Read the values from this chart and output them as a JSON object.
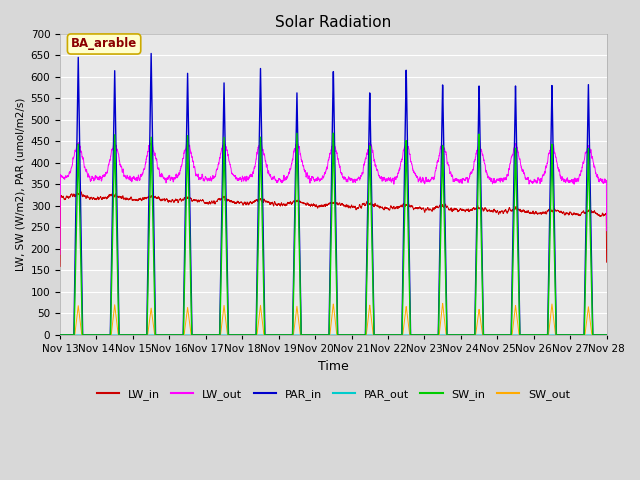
{
  "title": "Solar Radiation",
  "ylabel": "LW, SW (W/m2), PAR (umol/m2/s)",
  "xlabel": "Time",
  "annotation": "BA_arable",
  "ylim": [
    0,
    700
  ],
  "yticks": [
    0,
    50,
    100,
    150,
    200,
    250,
    300,
    350,
    400,
    450,
    500,
    550,
    600,
    650,
    700
  ],
  "xtick_labels": [
    "Nov 13",
    "Nov 14",
    "Nov 15",
    "Nov 16",
    "Nov 17",
    "Nov 18",
    "Nov 19",
    "Nov 20",
    "Nov 21",
    "Nov 22",
    "Nov 23",
    "Nov 24",
    "Nov 25",
    "Nov 26",
    "Nov 27",
    "Nov 28"
  ],
  "legend_entries": [
    "LW_in",
    "LW_out",
    "PAR_in",
    "PAR_out",
    "SW_in",
    "SW_out"
  ],
  "colors": {
    "LW_in": "#cc0000",
    "LW_out": "#ff00ff",
    "PAR_in": "#0000cc",
    "PAR_out": "#00cccc",
    "SW_in": "#00cc00",
    "SW_out": "#ffaa00"
  },
  "fig_bg": "#d8d8d8",
  "plot_bg": "#e8e8e8",
  "n_days": 15,
  "points_per_day": 288,
  "lw_linewidth": 0.7,
  "spike_linewidth": 1.0
}
